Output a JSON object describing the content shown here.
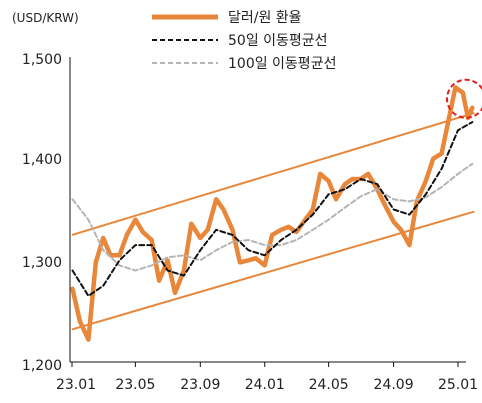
{
  "chart_data": {
    "type": "line",
    "unit_label": "(USD/KRW)",
    "title": "",
    "xlabel": "",
    "ylabel": "",
    "x_ticks": [
      "23.01",
      "23.05",
      "23.09",
      "24.01",
      "24.05",
      "24.09",
      "25.01"
    ],
    "y_ticks": [
      "1,500",
      "1,400",
      "1,300",
      "1,200"
    ],
    "ylim": [
      1200,
      1500
    ],
    "x_range": [
      "2023-01",
      "2025-01"
    ],
    "legend_position": "top-right",
    "series": [
      {
        "name": "달러/원 환율",
        "color": "#e8873a",
        "style": "solid",
        "points": [
          [
            "2023-01-02",
            1272
          ],
          [
            "2023-01-16",
            1240
          ],
          [
            "2023-02-01",
            1222
          ],
          [
            "2023-02-15",
            1298
          ],
          [
            "2023-03-01",
            1322
          ],
          [
            "2023-03-15",
            1305
          ],
          [
            "2023-04-01",
            1305
          ],
          [
            "2023-04-15",
            1325
          ],
          [
            "2023-05-01",
            1340
          ],
          [
            "2023-05-15",
            1328
          ],
          [
            "2023-06-01",
            1320
          ],
          [
            "2023-06-15",
            1280
          ],
          [
            "2023-07-01",
            1300
          ],
          [
            "2023-07-15",
            1268
          ],
          [
            "2023-08-01",
            1290
          ],
          [
            "2023-08-15",
            1336
          ],
          [
            "2023-09-01",
            1322
          ],
          [
            "2023-09-15",
            1330
          ],
          [
            "2023-10-01",
            1360
          ],
          [
            "2023-10-15",
            1350
          ],
          [
            "2023-11-01",
            1330
          ],
          [
            "2023-11-15",
            1298
          ],
          [
            "2023-12-01",
            1300
          ],
          [
            "2023-12-15",
            1302
          ],
          [
            "2024-01-01",
            1295
          ],
          [
            "2024-01-15",
            1325
          ],
          [
            "2024-02-01",
            1330
          ],
          [
            "2024-02-15",
            1333
          ],
          [
            "2024-03-01",
            1328
          ],
          [
            "2024-03-15",
            1338
          ],
          [
            "2024-04-01",
            1350
          ],
          [
            "2024-04-15",
            1385
          ],
          [
            "2024-05-01",
            1378
          ],
          [
            "2024-05-15",
            1360
          ],
          [
            "2024-06-01",
            1375
          ],
          [
            "2024-06-15",
            1380
          ],
          [
            "2024-07-01",
            1380
          ],
          [
            "2024-07-15",
            1385
          ],
          [
            "2024-08-01",
            1370
          ],
          [
            "2024-08-15",
            1355
          ],
          [
            "2024-09-01",
            1338
          ],
          [
            "2024-09-15",
            1330
          ],
          [
            "2024-10-01",
            1315
          ],
          [
            "2024-10-15",
            1358
          ],
          [
            "2024-11-01",
            1378
          ],
          [
            "2024-11-15",
            1400
          ],
          [
            "2024-12-01",
            1405
          ],
          [
            "2024-12-15",
            1440
          ],
          [
            "2024-12-27",
            1470
          ],
          [
            "2025-01-10",
            1465
          ],
          [
            "2025-01-20",
            1440
          ],
          [
            "2025-01-28",
            1450
          ]
        ]
      },
      {
        "name": "50일 이동평균선",
        "color": "#111111",
        "style": "dashed",
        "points": [
          [
            "2023-01-02",
            1290
          ],
          [
            "2023-02-01",
            1265
          ],
          [
            "2023-03-01",
            1275
          ],
          [
            "2023-04-01",
            1300
          ],
          [
            "2023-05-01",
            1315
          ],
          [
            "2023-06-01",
            1315
          ],
          [
            "2023-07-01",
            1290
          ],
          [
            "2023-08-01",
            1285
          ],
          [
            "2023-09-01",
            1310
          ],
          [
            "2023-10-01",
            1330
          ],
          [
            "2023-11-01",
            1325
          ],
          [
            "2023-12-01",
            1310
          ],
          [
            "2024-01-01",
            1305
          ],
          [
            "2024-02-01",
            1320
          ],
          [
            "2024-03-01",
            1330
          ],
          [
            "2024-04-01",
            1345
          ],
          [
            "2024-05-01",
            1365
          ],
          [
            "2024-06-01",
            1370
          ],
          [
            "2024-07-01",
            1380
          ],
          [
            "2024-08-01",
            1375
          ],
          [
            "2024-09-01",
            1350
          ],
          [
            "2024-10-01",
            1345
          ],
          [
            "2024-11-01",
            1365
          ],
          [
            "2024-12-01",
            1390
          ],
          [
            "2025-01-01",
            1428
          ],
          [
            "2025-01-28",
            1436
          ]
        ]
      },
      {
        "name": "100일 이동평균선",
        "color": "#b4b4b4",
        "style": "dashed",
        "points": [
          [
            "2023-01-02",
            1360
          ],
          [
            "2023-02-01",
            1340
          ],
          [
            "2023-03-01",
            1310
          ],
          [
            "2023-04-01",
            1295
          ],
          [
            "2023-05-01",
            1290
          ],
          [
            "2023-06-01",
            1295
          ],
          [
            "2023-07-01",
            1303
          ],
          [
            "2023-08-01",
            1305
          ],
          [
            "2023-09-01",
            1300
          ],
          [
            "2023-10-01",
            1310
          ],
          [
            "2023-11-01",
            1318
          ],
          [
            "2023-12-01",
            1320
          ],
          [
            "2024-01-01",
            1315
          ],
          [
            "2024-02-01",
            1315
          ],
          [
            "2024-03-01",
            1320
          ],
          [
            "2024-04-01",
            1330
          ],
          [
            "2024-05-01",
            1340
          ],
          [
            "2024-06-01",
            1352
          ],
          [
            "2024-07-01",
            1363
          ],
          [
            "2024-08-01",
            1370
          ],
          [
            "2024-09-01",
            1360
          ],
          [
            "2024-10-01",
            1358
          ],
          [
            "2024-11-01",
            1362
          ],
          [
            "2024-12-01",
            1372
          ],
          [
            "2025-01-01",
            1385
          ],
          [
            "2025-01-28",
            1395
          ]
        ]
      }
    ],
    "channel_lines": [
      {
        "color": "#e8873a",
        "from": [
          "2023-01-01",
          1325
        ],
        "to": [
          "2025-02-01",
          1445
        ]
      },
      {
        "color": "#e8873a",
        "from": [
          "2023-01-01",
          1232
        ],
        "to": [
          "2025-02-01",
          1348
        ]
      }
    ],
    "highlight_circle": {
      "color": "#e02020",
      "center": [
        "2025-01-01",
        1455
      ]
    }
  }
}
